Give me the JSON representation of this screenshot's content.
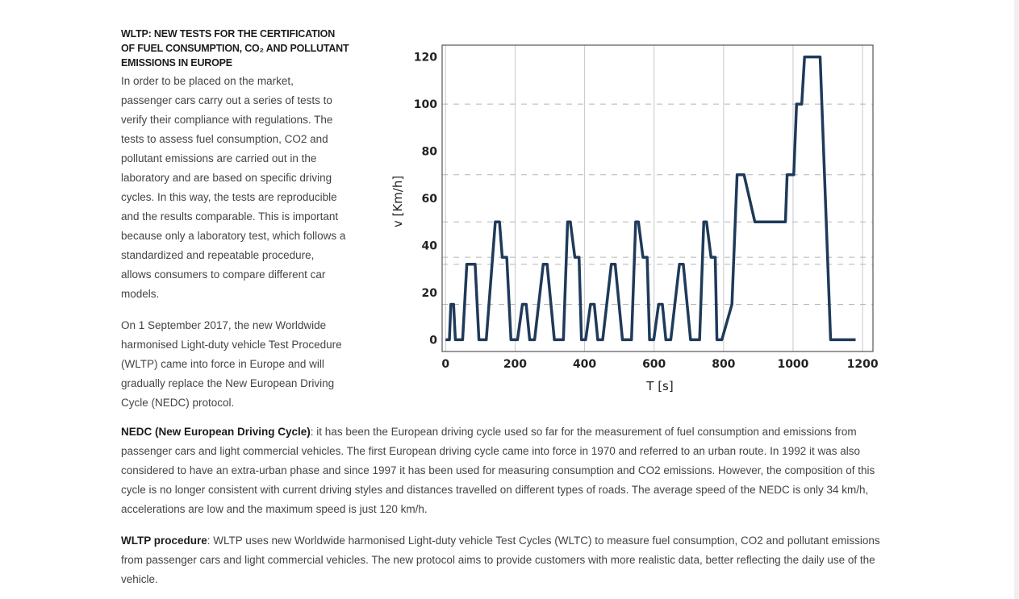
{
  "article": {
    "heading": "WLTP: NEW TESTS FOR THE CERTIFICATION OF FUEL CONSUMPTION, CO₂ AND POLLUTANT EMISSIONS IN EUROPE",
    "para1": "In order to be placed on the market, passenger cars carry out a series of tests to verify their compliance with regulations. The tests to assess fuel consumption, CO2 and pollutant emissions are carried out in the laboratory and are based on specific driving cycles. In this way, the tests are reproducible and the results comparable. This is important because only a laboratory test, which follows a standardized and repeatable procedure, allows consumers to compare different car models.",
    "para2": "On 1 September 2017, the new Worldwide harmonised Light-duty vehicle Test Procedure (WLTP) came into force in Europe and will gradually replace the New European Driving Cycle (NEDC) protocol.",
    "nedc_term": "NEDC (New European Driving Cycle)",
    "nedc_text": ": it has been the European driving cycle used so far for the measurement of fuel consumption and emissions from passenger cars and light commercial vehicles. The first European driving cycle came into force in 1970 and referred to an urban route. In 1992 it was also considered to have an extra-urban phase and since 1997 it has been used for measuring consumption and CO2 emissions. However, the composition of this cycle is no longer consistent with current driving styles and distances travelled on different types of roads. The average speed of the NEDC is only 34 km/h, accelerations are low and the maximum speed is just 120 km/h.",
    "wltp_term": "WLTP procedure",
    "wltp_text": ": WLTP uses new Worldwide harmonised Light-duty vehicle Test Cycles (WLTC) to measure fuel consumption, CO2 and pollutant emissions from passenger cars and light commercial vehicles. The new protocol aims to provide customers with more realistic data, better reflecting the daily use of the vehicle."
  },
  "chart_data": {
    "type": "line",
    "xlabel": "T [s]",
    "ylabel": "v [Km/h]",
    "xlim": [
      -10,
      1230
    ],
    "ylim": [
      -5,
      125
    ],
    "xticks": [
      0,
      200,
      400,
      600,
      800,
      1000,
      1200
    ],
    "yticks": [
      0,
      20,
      40,
      60,
      80,
      100,
      120
    ],
    "grid": {
      "vertical": "solid",
      "horizontal": "dashed",
      "dashed_levels": [
        15,
        32,
        35,
        50,
        70,
        100
      ]
    },
    "line_color": "#1f3a5a",
    "series": [
      {
        "x": [
          0,
          11,
          15,
          23,
          28,
          49,
          61,
          85,
          96,
          117,
          143,
          155,
          163,
          176,
          188,
          195,
          207,
          221,
          232,
          242,
          256,
          281,
          292,
          313,
          339,
          351,
          359,
          372,
          384,
          391,
          403,
          417,
          428,
          438,
          452,
          477,
          488,
          509,
          535,
          547,
          555,
          568,
          580,
          587,
          599,
          613,
          624,
          634,
          648,
          673,
          684,
          705,
          731,
          743,
          751,
          764,
          776,
          781,
          795,
          824,
          839,
          845,
          859,
          890,
          892,
          898,
          978,
          983,
          985,
          1002,
          1010,
          1025,
          1033,
          1078,
          1108,
          1118,
          1155,
          1167,
          1167,
          1170,
          1180
        ],
        "y": [
          0,
          0,
          15,
          15,
          0,
          0,
          32,
          32,
          0,
          0,
          50,
          50,
          35,
          35,
          0,
          0,
          0,
          15,
          15,
          0,
          0,
          32,
          32,
          0,
          0,
          50,
          50,
          35,
          35,
          0,
          0,
          15,
          15,
          0,
          0,
          32,
          32,
          0,
          0,
          50,
          50,
          35,
          35,
          0,
          0,
          15,
          15,
          0,
          0,
          32,
          32,
          0,
          0,
          50,
          50,
          35,
          35,
          0,
          0,
          15,
          70,
          70,
          70,
          50,
          50,
          50,
          50,
          70,
          70,
          70,
          100,
          100,
          120,
          120,
          0,
          0,
          0,
          0,
          0,
          0,
          0
        ]
      }
    ]
  }
}
